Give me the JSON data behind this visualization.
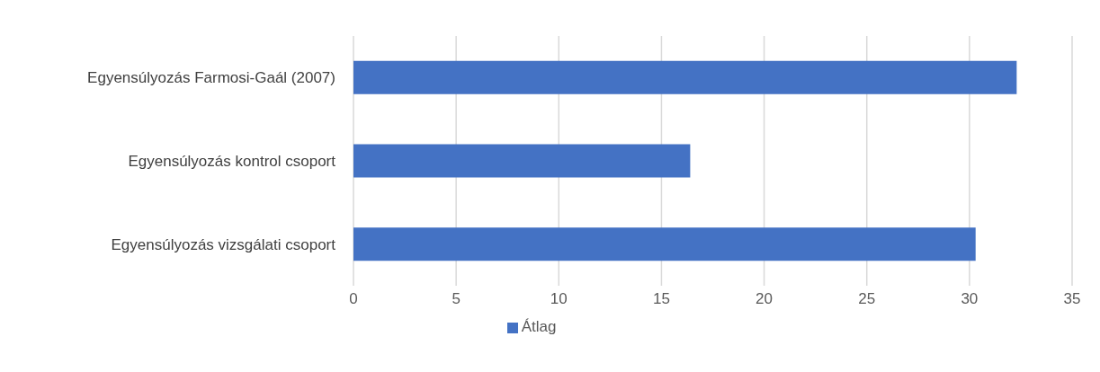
{
  "chart_data": {
    "type": "bar",
    "orientation": "horizontal",
    "categories": [
      "Egyensúlyozás Farmosi-Gaál (2007)",
      "Egyensúlyozás kontrol csoport",
      "Egyensúlyozás vizsgálati csoport"
    ],
    "series": [
      {
        "name": "Átlag",
        "color": "#4472c4",
        "values": [
          32.3,
          16.4,
          30.3
        ]
      }
    ],
    "xlim": [
      0,
      35
    ],
    "xticks": [
      0,
      5,
      10,
      15,
      20,
      25,
      30,
      35
    ],
    "grid": "x",
    "legend": "bottom"
  }
}
